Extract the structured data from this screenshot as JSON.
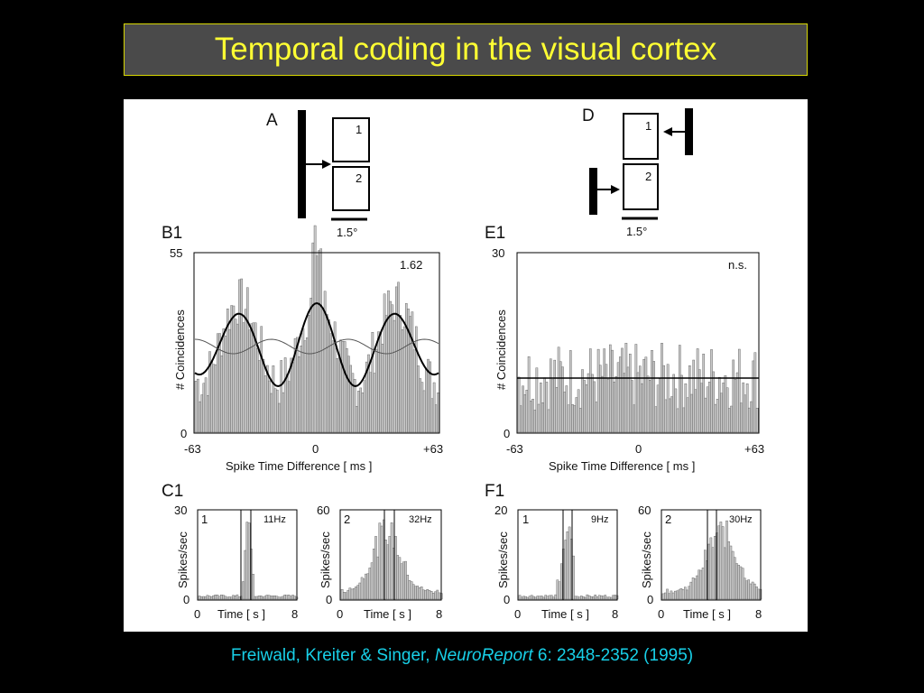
{
  "slide": {
    "title": "Temporal coding in the visual cortex",
    "colors": {
      "background": "#000000",
      "title_bg": "#4a4a4a",
      "title_text": "#ffff33",
      "caption_text": "#18d0e8"
    }
  },
  "figure": {
    "panel_A": {
      "label": "A",
      "box1": "1",
      "box2": "2",
      "scale": "1.5°"
    },
    "panel_D": {
      "label": "D",
      "box1": "1",
      "box2": "2",
      "scale": "1.5°"
    },
    "panel_B1": {
      "label": "B1",
      "ylabel": "# Coincidences",
      "xlabel": "Spike Time Difference [ ms ]",
      "ytick_top": "55",
      "ytick_bottom": "0",
      "xtick_left": "-63",
      "xtick_mid": "0",
      "xtick_right": "+63",
      "annotation": "1.62"
    },
    "panel_E1": {
      "label": "E1",
      "ylabel": "# Coincidences",
      "xlabel": "Spike Time Difference [ ms ]",
      "ytick_top": "30",
      "ytick_bottom": "0",
      "xtick_left": "-63",
      "xtick_mid": "0",
      "xtick_right": "+63",
      "annotation": "n.s."
    },
    "panel_C1": {
      "label": "C1",
      "left": {
        "cell": "1",
        "rate": "11Hz",
        "ylabel": "Spikes/sec",
        "ytick_top": "30",
        "ytick_bottom": "0",
        "xtick_left": "0",
        "xlabel": "Time [ s ]",
        "xtick_right": "8"
      },
      "right": {
        "cell": "2",
        "rate": "32Hz",
        "ylabel": "Spikes/sec",
        "ytick_top": "60",
        "ytick_bottom": "0",
        "xtick_left": "0",
        "xlabel": "Time [ s ]",
        "xtick_right": "8"
      }
    },
    "panel_F1": {
      "label": "F1",
      "left": {
        "cell": "1",
        "rate": "9Hz",
        "ylabel": "Spikes/sec",
        "ytick_top": "20",
        "ytick_bottom": "0",
        "xtick_left": "0",
        "xlabel": "Time [ s ]",
        "xtick_right": "8"
      },
      "right": {
        "cell": "2",
        "rate": "30Hz",
        "ylabel": "Spikes/sec",
        "ytick_top": "60",
        "ytick_bottom": "0",
        "xtick_left": "0",
        "xlabel": "Time [ s ]",
        "xtick_right": "8"
      }
    }
  },
  "caption": {
    "authors": "Freiwald, Kreiter & Singer, ",
    "journal": "NeuroReport",
    "citation": " 6: 2348-2352 (1995)"
  }
}
